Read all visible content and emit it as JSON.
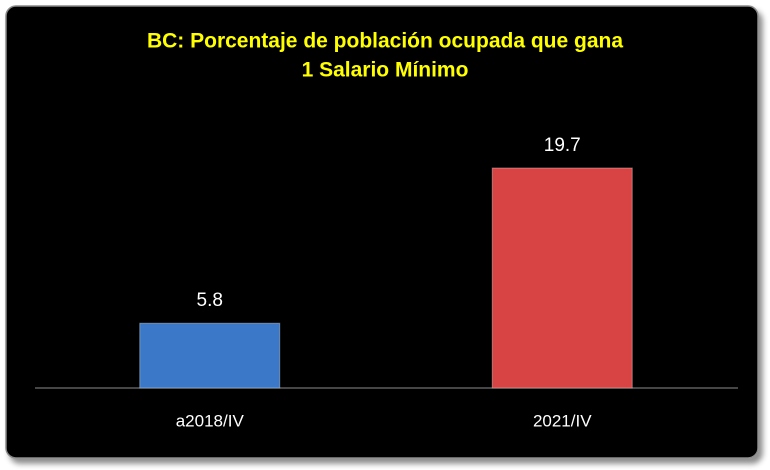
{
  "chart_data": {
    "type": "bar",
    "title": [
      "BC: Porcentaje de población ocupada que gana",
      "1 Salario Mínimo"
    ],
    "categories": [
      "a2018/IV",
      "2021/IV"
    ],
    "values": [
      5.8,
      19.7
    ],
    "colors": [
      "#3b78c8",
      "#d84343"
    ]
  }
}
